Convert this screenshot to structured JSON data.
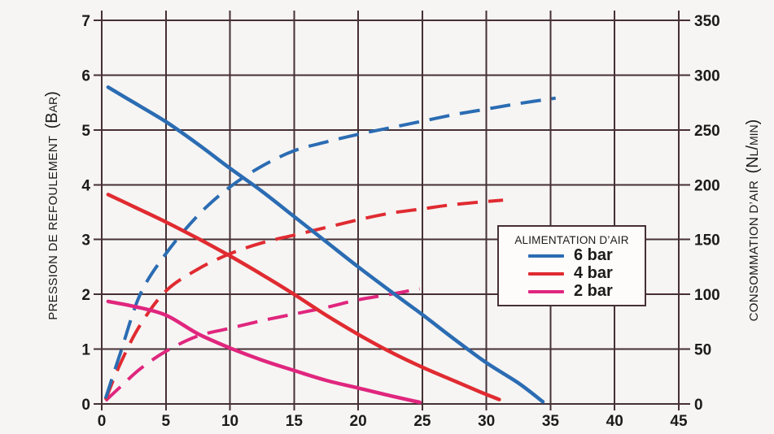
{
  "figure": {
    "background": "#f6f5f3"
  },
  "colors": {
    "grid": "#463034",
    "text": "#1d1b1a",
    "legend_background": "#fdfcfb",
    "blue_6bar": "#2b6cb3",
    "red_4bar": "#e02b31",
    "magenta_2bar": "#e0267e"
  },
  "chart_data": {
    "type": "line",
    "title": "",
    "grid": "on",
    "x_axis": {
      "label": "",
      "min": 0,
      "max": 45,
      "ticks": [
        0,
        5,
        10,
        15,
        20,
        25,
        30,
        35,
        40,
        45
      ]
    },
    "y_left": {
      "label": "PRESSION DE REFOULEMENT",
      "unit": "(Bar)",
      "min": 0,
      "max": 7,
      "ticks": [
        0,
        1,
        2,
        3,
        4,
        5,
        6,
        7
      ]
    },
    "y_right": {
      "label": "CONSOMMATION D’AIR",
      "unit": "(Nl/min)",
      "min": 0,
      "max": 350,
      "ticks": [
        0,
        50,
        100,
        150,
        200,
        250,
        300,
        350
      ]
    },
    "legend": {
      "title": "ALIMENTATION D’AIR",
      "position": "right-middle",
      "items": [
        {
          "label": "6 bar",
          "color": "#2b6cb3"
        },
        {
          "label": "4 bar",
          "color": "#e02b31"
        },
        {
          "label": "2 bar",
          "color": "#e0267e"
        }
      ]
    },
    "series": [
      {
        "id": "consumption-2bar",
        "name": "2 bar - consommation d'air (Nl/min)",
        "axis": "right",
        "style": "dashed",
        "color": "#e0267e",
        "points": [
          [
            0.3,
            3
          ],
          [
            1.5,
            16
          ],
          [
            3,
            32
          ],
          [
            5,
            48
          ],
          [
            7.5,
            62
          ],
          [
            10,
            69
          ],
          [
            12.5,
            76
          ],
          [
            15,
            82
          ],
          [
            17.5,
            88
          ],
          [
            20,
            95
          ],
          [
            22.5,
            100
          ],
          [
            24.8,
            105
          ]
        ]
      },
      {
        "id": "consumption-4bar",
        "name": "4 bar - consommation d'air (Nl/min)",
        "axis": "right",
        "style": "dashed",
        "color": "#e02b31",
        "points": [
          [
            0.3,
            4
          ],
          [
            1.5,
            38
          ],
          [
            3,
            72
          ],
          [
            5,
            103
          ],
          [
            7.5,
            123
          ],
          [
            10,
            137
          ],
          [
            12.5,
            147
          ],
          [
            15,
            154
          ],
          [
            17.5,
            161
          ],
          [
            20,
            168
          ],
          [
            22.5,
            174
          ],
          [
            25,
            178
          ],
          [
            27.5,
            182
          ],
          [
            31.3,
            186
          ]
        ]
      },
      {
        "id": "consumption-6bar",
        "name": "6 bar - consommation d'air (Nl/min)",
        "axis": "right",
        "style": "dashed",
        "color": "#2b6cb3",
        "points": [
          [
            0.3,
            5
          ],
          [
            1.5,
            48
          ],
          [
            3,
            100
          ],
          [
            5,
            137
          ],
          [
            7.5,
            172
          ],
          [
            10,
            198
          ],
          [
            12.5,
            217
          ],
          [
            15,
            231
          ],
          [
            17.5,
            239
          ],
          [
            20,
            246
          ],
          [
            22.5,
            252
          ],
          [
            25,
            258
          ],
          [
            27.5,
            264
          ],
          [
            30,
            269
          ],
          [
            32.5,
            274
          ],
          [
            35.4,
            279
          ]
        ]
      },
      {
        "id": "pressure-2bar",
        "name": "2 bar - pression de refoulement (bar)",
        "axis": "left",
        "style": "solid",
        "color": "#e0267e",
        "points": [
          [
            0.5,
            1.87
          ],
          [
            2.5,
            1.78
          ],
          [
            5,
            1.62
          ],
          [
            7.5,
            1.28
          ],
          [
            10,
            1.02
          ],
          [
            12.5,
            0.8
          ],
          [
            15,
            0.61
          ],
          [
            17.5,
            0.43
          ],
          [
            20,
            0.29
          ],
          [
            22.5,
            0.15
          ],
          [
            24.8,
            0.03
          ]
        ]
      },
      {
        "id": "pressure-4bar",
        "name": "4 bar - pression de refoulement (bar)",
        "axis": "left",
        "style": "solid",
        "color": "#e02b31",
        "points": [
          [
            0.5,
            3.82
          ],
          [
            2.5,
            3.6
          ],
          [
            5,
            3.32
          ],
          [
            7.5,
            3.02
          ],
          [
            10,
            2.7
          ],
          [
            12.5,
            2.36
          ],
          [
            15,
            2.0
          ],
          [
            17.5,
            1.62
          ],
          [
            20,
            1.27
          ],
          [
            22.5,
            0.95
          ],
          [
            25,
            0.67
          ],
          [
            27.5,
            0.42
          ],
          [
            29.5,
            0.22
          ],
          [
            31,
            0.08
          ]
        ]
      },
      {
        "id": "pressure-6bar",
        "name": "6 bar - pression de refoulement (bar)",
        "axis": "left",
        "style": "solid",
        "color": "#2b6cb3",
        "points": [
          [
            0.5,
            5.78
          ],
          [
            2.5,
            5.5
          ],
          [
            5,
            5.15
          ],
          [
            7.5,
            4.74
          ],
          [
            10,
            4.3
          ],
          [
            12.5,
            3.88
          ],
          [
            15,
            3.42
          ],
          [
            17.5,
            2.96
          ],
          [
            20,
            2.5
          ],
          [
            22.5,
            2.06
          ],
          [
            25,
            1.63
          ],
          [
            27.5,
            1.18
          ],
          [
            30,
            0.75
          ],
          [
            32.5,
            0.38
          ],
          [
            34.4,
            0.04
          ]
        ]
      }
    ]
  }
}
